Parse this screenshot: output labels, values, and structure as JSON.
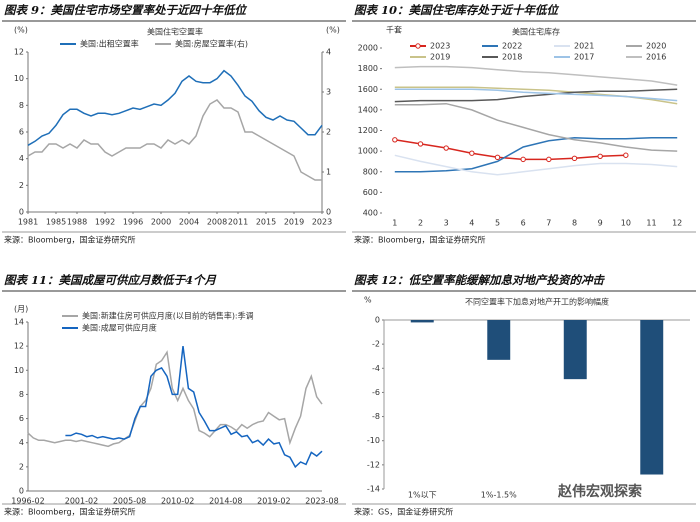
{
  "chart_data": [
    {
      "type": "line",
      "heading": "图表 9：美国住宅市场空置率处于近四十年低位",
      "source": "来源：Bloomberg，国金证券研究所",
      "title": "美国住宅空置率",
      "ylabel": "(%)",
      "y2label": "(%)",
      "x": [
        1981,
        1982,
        1983,
        1984,
        1985,
        1986,
        1987,
        1988,
        1989,
        1990,
        1991,
        1992,
        1993,
        1994,
        1995,
        1996,
        1997,
        1998,
        1999,
        2000,
        2001,
        2002,
        2003,
        2004,
        2005,
        2006,
        2007,
        2008,
        2009,
        2010,
        2011,
        2012,
        2013,
        2014,
        2015,
        2016,
        2017,
        2018,
        2019,
        2020,
        2021,
        2022,
        2023
      ],
      "xlim": [
        1981,
        2023
      ],
      "xticks": [
        1981,
        1985,
        1988,
        1992,
        1996,
        2000,
        2004,
        2008,
        2011,
        2015,
        2019,
        2023
      ],
      "ylim": [
        0,
        12
      ],
      "yticks": [
        0,
        2,
        4,
        6,
        8,
        10,
        12
      ],
      "y2lim": [
        0,
        4
      ],
      "y2ticks": [
        0,
        1,
        2,
        3,
        4
      ],
      "grid": false,
      "series": [
        {
          "name": "美国:出租空置率",
          "color": "#1f6fb8",
          "values": [
            5.0,
            5.3,
            5.7,
            5.9,
            6.5,
            7.3,
            7.7,
            7.7,
            7.4,
            7.2,
            7.4,
            7.4,
            7.3,
            7.4,
            7.6,
            7.8,
            7.7,
            7.9,
            8.1,
            8.0,
            8.4,
            8.9,
            9.8,
            10.2,
            9.8,
            9.7,
            9.7,
            10.0,
            10.6,
            10.2,
            9.5,
            8.7,
            8.3,
            7.6,
            7.1,
            6.9,
            7.2,
            6.9,
            6.8,
            6.3,
            5.8,
            5.8,
            6.5
          ]
        },
        {
          "name": "美国:房屋空置率(右)",
          "color": "#a6a6a6",
          "axis": "y2",
          "values": [
            1.4,
            1.5,
            1.5,
            1.7,
            1.7,
            1.6,
            1.7,
            1.6,
            1.8,
            1.7,
            1.7,
            1.5,
            1.4,
            1.5,
            1.6,
            1.6,
            1.6,
            1.7,
            1.7,
            1.6,
            1.8,
            1.7,
            1.8,
            1.7,
            1.9,
            2.4,
            2.7,
            2.8,
            2.6,
            2.6,
            2.5,
            2.0,
            2.0,
            1.9,
            1.8,
            1.7,
            1.6,
            1.5,
            1.4,
            1.0,
            0.9,
            0.8,
            0.8
          ]
        }
      ]
    },
    {
      "type": "line",
      "heading": "图表 10：美国住宅库存处于近十年低位",
      "source": "来源：Bloomberg，国金证券研究所",
      "title": "美国住宅库存",
      "ylabel": "千套",
      "categories": [
        1,
        2,
        3,
        4,
        5,
        6,
        7,
        8,
        9,
        10,
        11,
        12
      ],
      "ylim": [
        400,
        2000
      ],
      "yticks": [
        400,
        600,
        800,
        1000,
        1200,
        1400,
        1600,
        1800,
        2000
      ],
      "grid": false,
      "series": [
        {
          "name": "2023",
          "color": "#d7261e",
          "marker": "circle",
          "values": [
            1110,
            1070,
            1030,
            980,
            940,
            920,
            920,
            930,
            950,
            960,
            null,
            null
          ]
        },
        {
          "name": "2022",
          "color": "#2e75b6",
          "values": [
            800,
            800,
            810,
            830,
            900,
            1040,
            1100,
            1130,
            1120,
            1120,
            1130,
            1130
          ]
        },
        {
          "name": "2021",
          "color": "#d9e2f0",
          "values": [
            960,
            900,
            850,
            800,
            770,
            800,
            830,
            860,
            880,
            880,
            870,
            850
          ]
        },
        {
          "name": "2020",
          "color": "#a6a6a6",
          "values": [
            1450,
            1450,
            1460,
            1400,
            1300,
            1230,
            1160,
            1110,
            1080,
            1040,
            1010,
            1000
          ]
        },
        {
          "name": "2019",
          "color": "#c9c38a",
          "values": [
            1620,
            1620,
            1620,
            1620,
            1610,
            1600,
            1590,
            1570,
            1550,
            1530,
            1500,
            1460
          ]
        },
        {
          "name": "2018",
          "color": "#595959",
          "values": [
            1480,
            1490,
            1490,
            1490,
            1500,
            1530,
            1550,
            1570,
            1580,
            1580,
            1590,
            1600
          ]
        },
        {
          "name": "2017",
          "color": "#9dc3e6",
          "values": [
            1600,
            1600,
            1600,
            1600,
            1590,
            1570,
            1560,
            1550,
            1540,
            1530,
            1510,
            1490
          ]
        },
        {
          "name": "2016",
          "color": "#bfbfbf",
          "values": [
            1810,
            1820,
            1820,
            1810,
            1790,
            1770,
            1760,
            1740,
            1720,
            1700,
            1680,
            1640
          ]
        }
      ]
    },
    {
      "type": "line",
      "heading": "图表 11：美国成屋可供应月数低于4个月",
      "source": "来源：Bloomberg，国金证券研究所",
      "ylabel": "(月)",
      "x": [
        "1996-02",
        "1996-08",
        "1997-02",
        "1997-08",
        "1998-02",
        "1998-08",
        "1999-02",
        "1999-08",
        "2000-02",
        "2000-08",
        "2001-02",
        "2001-08",
        "2002-02",
        "2002-08",
        "2003-02",
        "2003-08",
        "2004-02",
        "2004-08",
        "2005-02",
        "2005-08",
        "2006-02",
        "2006-08",
        "2007-02",
        "2007-08",
        "2008-02",
        "2008-08",
        "2009-02",
        "2009-08",
        "2010-02",
        "2010-08",
        "2011-02",
        "2011-08",
        "2012-02",
        "2012-08",
        "2013-02",
        "2013-08",
        "2014-02",
        "2014-08",
        "2015-02",
        "2015-08",
        "2016-02",
        "2016-08",
        "2017-02",
        "2017-08",
        "2018-02",
        "2018-08",
        "2019-02",
        "2019-08",
        "2020-02",
        "2020-08",
        "2021-02",
        "2021-08",
        "2022-02",
        "2022-08",
        "2023-02",
        "2023-08"
      ],
      "xticks": [
        "1996-02",
        "2001-02",
        "2005-08",
        "2010-02",
        "2014-08",
        "2019-02",
        "2023-08"
      ],
      "ylim": [
        0,
        14
      ],
      "yticks": [
        0,
        2,
        4,
        6,
        8,
        10,
        12,
        14
      ],
      "grid": false,
      "series": [
        {
          "name": "美国:新建住房可供应月度(以目前的销售率):季调",
          "color": "#a6a6a6",
          "values": [
            4.8,
            4.4,
            4.2,
            4.2,
            4.1,
            4.0,
            4.1,
            4.2,
            4.2,
            4.1,
            4.2,
            4.1,
            4.0,
            3.9,
            3.8,
            3.7,
            3.9,
            4.0,
            4.3,
            4.6,
            5.8,
            7.0,
            7.5,
            8.5,
            10.5,
            10.8,
            11.5,
            8.5,
            7.5,
            8.5,
            7.5,
            6.8,
            5.0,
            4.8,
            4.5,
            5.0,
            5.5,
            5.5,
            5.3,
            5.0,
            5.5,
            5.2,
            5.5,
            5.7,
            5.8,
            6.5,
            6.2,
            5.9,
            6.0,
            4.0,
            5.2,
            6.2,
            8.5,
            9.5,
            7.8,
            7.2
          ]
        },
        {
          "name": "美国:成屋可供应月度",
          "color": "#1565c0",
          "values": [
            null,
            null,
            null,
            null,
            null,
            null,
            null,
            4.6,
            4.6,
            4.8,
            4.7,
            4.5,
            4.6,
            4.4,
            4.5,
            4.4,
            4.3,
            4.4,
            4.3,
            4.5,
            6.0,
            7.0,
            7.0,
            9.5,
            10.0,
            10.2,
            9.5,
            8.0,
            8.0,
            12.0,
            8.5,
            8.2,
            6.5,
            5.8,
            5.0,
            5.0,
            5.2,
            5.4,
            4.7,
            4.9,
            4.5,
            4.6,
            4.0,
            4.2,
            3.8,
            4.3,
            3.9,
            4.0,
            3.0,
            2.8,
            2.0,
            2.4,
            2.2,
            3.2,
            2.9,
            3.3
          ]
        }
      ]
    },
    {
      "type": "bar",
      "heading": "图表 12：低空置率能缓解加息对地产投资的冲击",
      "source": "来源：GS，国金证券研究所",
      "title": "不同空置率下加息对地产开工的影响幅度",
      "ylabel": "%",
      "categories": [
        "1%以下",
        "1%-1.5%",
        null,
        null
      ],
      "values": [
        -0.2,
        -3.3,
        -4.9,
        -12.8
      ],
      "color": "#1f4e79",
      "ylim": [
        -14,
        0
      ],
      "yticks": [
        -14,
        -12,
        -10,
        -8,
        -6,
        -4,
        -2,
        0
      ],
      "grid": false
    }
  ],
  "watermark": "赵伟宏观探索"
}
